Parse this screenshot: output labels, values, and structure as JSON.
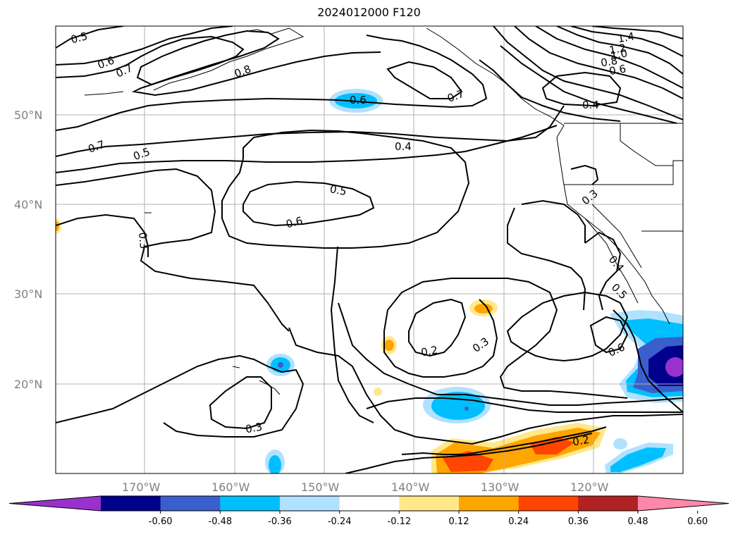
{
  "title": "2024012000 F120",
  "lat_labels": [
    "50°N",
    "40°N",
    "30°N",
    "20°N"
  ],
  "lon_labels": [
    "170°W",
    "160°W",
    "150°W",
    "140°W",
    "130°W",
    "120°W"
  ],
  "contour_labels": [
    "0.5",
    "0.6",
    "0.7",
    "0.8",
    "0.6",
    "0.7",
    "1.4",
    "1.2",
    "1.0",
    "0.8",
    "0.6",
    "0.4",
    "0.7",
    "0.5",
    "0.4",
    "0.5",
    "0.6",
    "0.3",
    "0.3",
    "0.4",
    "0.5",
    "0.2",
    "0.3",
    "0.6",
    "0.3",
    "0.2"
  ],
  "colorbar": {
    "ticks": [
      "-0.60",
      "-0.48",
      "-0.36",
      "-0.24",
      "-0.12",
      "0.12",
      "0.24",
      "0.36",
      "0.48",
      "0.60"
    ],
    "colors": [
      "#9932cc",
      "#00008b",
      "#3a5fcd",
      "#00bfff",
      "#b0e2ff",
      "#ffffff",
      "#ffe88a",
      "#ffa500",
      "#ff4500",
      "#b22222",
      "#ff88aa"
    ]
  }
}
